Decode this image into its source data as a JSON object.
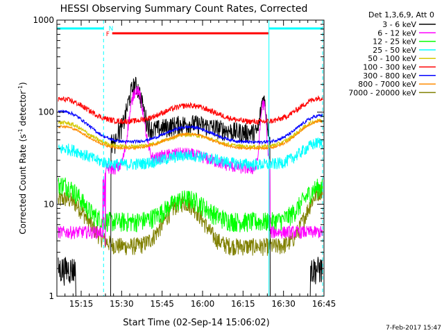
{
  "chart_data": {
    "type": "line",
    "title": "HESSI Observing Summary Count Rates, Corrected",
    "xlabel": "Start Time (02-Sep-14 15:06:02)",
    "ylabel_main": "Corrected Count Rate (s",
    "ylabel_sup1": "-1",
    "ylabel_mid": " detector",
    "ylabel_sup2": "-1",
    "ylabel_end": ")",
    "y_scale": "log",
    "ylim": [
      1,
      1000
    ],
    "xlim_minutes": [
      6,
      105
    ],
    "x_tick_labels": [
      "15:15",
      "15:30",
      "15:45",
      "16:00",
      "16:15",
      "16:30",
      "16:45"
    ],
    "y_tick_labels": [
      "1",
      "10",
      "100",
      "1000"
    ],
    "legend_title": "Det 1,3,6,9, Att 0",
    "legend_position": "right",
    "timestamp": "7-Feb-2017 15:47",
    "annotations": {
      "night_label": "N",
      "flare_label": "F"
    },
    "series": [
      {
        "name": "3 - 6 keV",
        "color": "#000000"
      },
      {
        "name": "6 - 12 keV",
        "color": "#ff00ff"
      },
      {
        "name": "12 - 25 keV",
        "color": "#00ff00"
      },
      {
        "name": "25 - 50 keV",
        "color": "#00ffff"
      },
      {
        "name": "50 - 100 keV",
        "color": "#d4c800"
      },
      {
        "name": "100 - 300 keV",
        "color": "#ff0000"
      },
      {
        "name": "300 - 800 keV",
        "color": "#0000ff"
      },
      {
        "name": "800 - 7000 keV",
        "color": "#ff8c00"
      },
      {
        "name": "7000 - 20000 keV",
        "color": "#808000"
      }
    ]
  }
}
